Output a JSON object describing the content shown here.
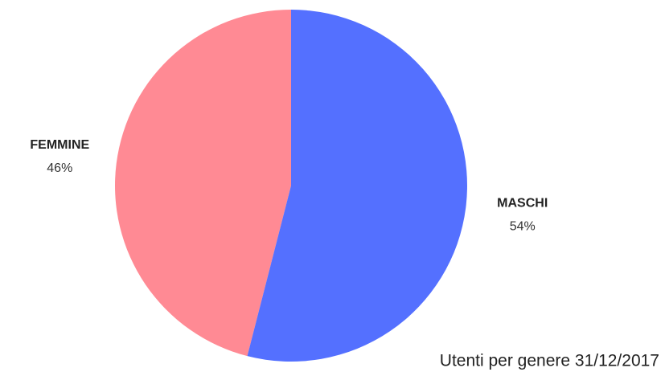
{
  "chart_data": {
    "type": "pie",
    "title": "Utenti per genere 31/12/2017",
    "categories": [
      "MASCHI",
      "FEMMINE"
    ],
    "values": [
      54,
      46
    ],
    "value_labels": [
      "54%",
      "46%"
    ],
    "colors": [
      "#5470ff",
      "#ff8a94"
    ]
  }
}
